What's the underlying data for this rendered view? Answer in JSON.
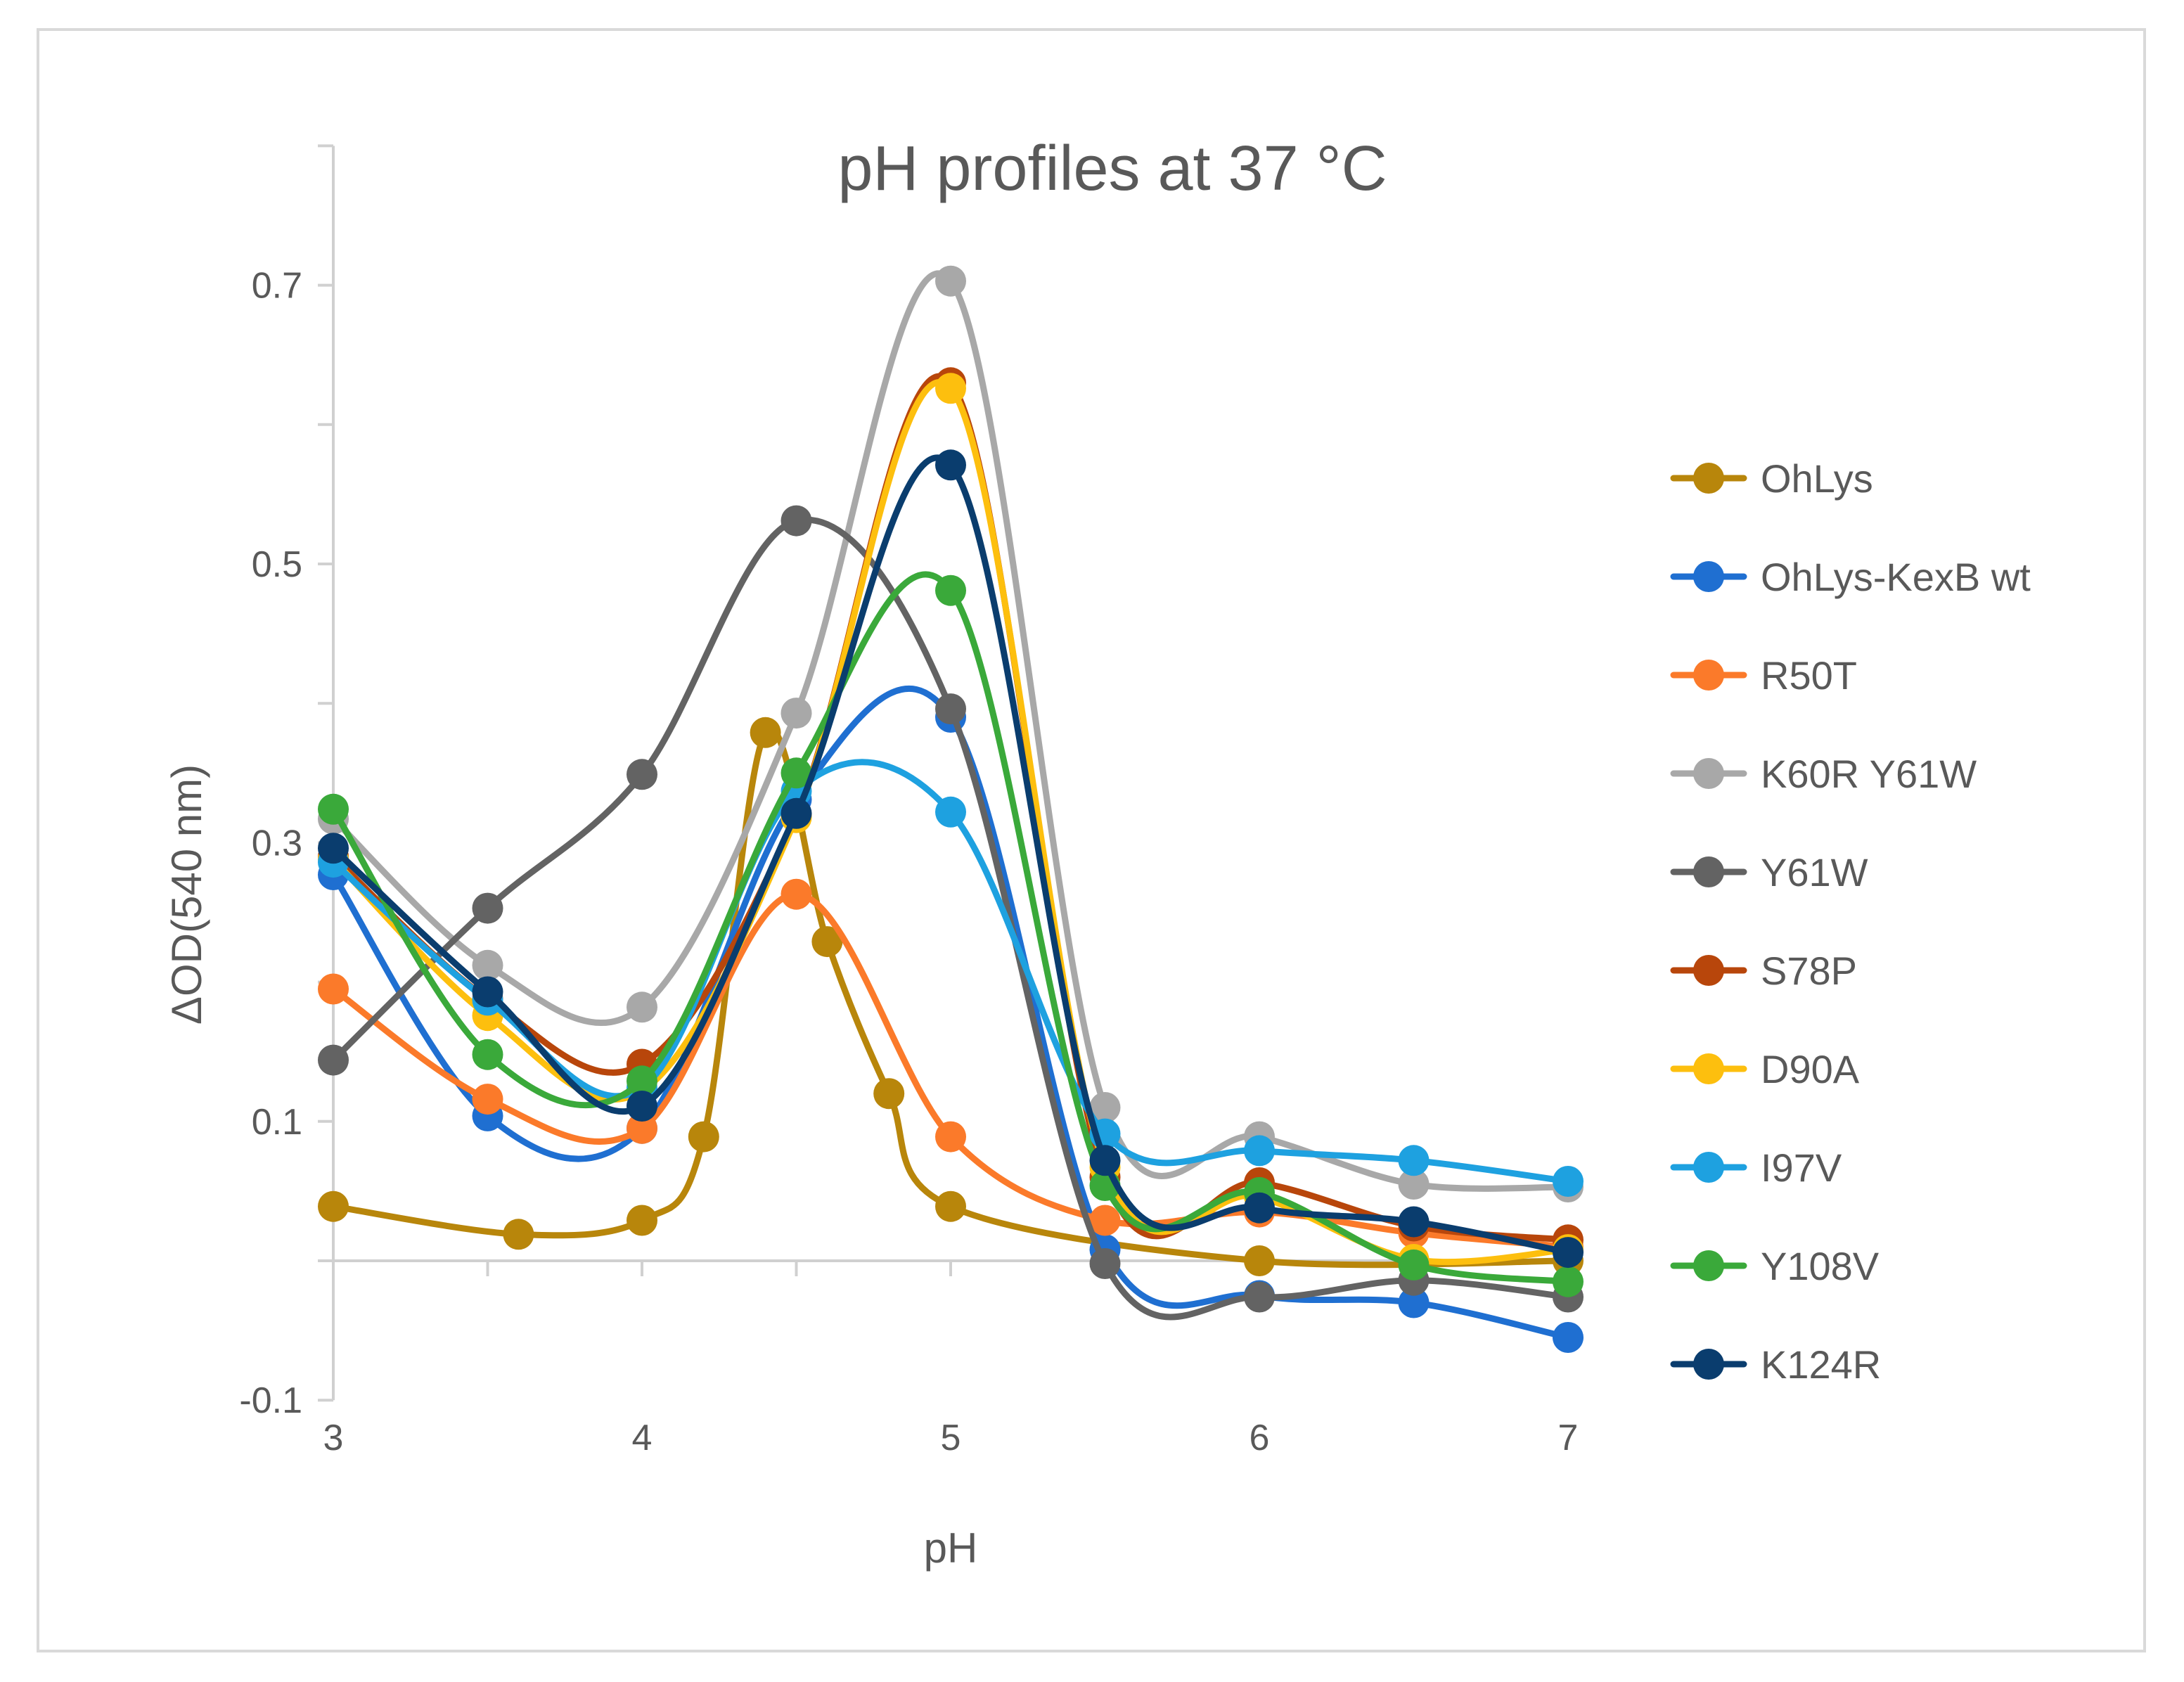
{
  "chart_data": {
    "type": "line",
    "title": "pH profiles at 37 °C",
    "xlabel": "pH",
    "ylabel": "ΔOD(540 nm)",
    "xlim": [
      3,
      7
    ],
    "ylim": [
      -0.1,
      0.8
    ],
    "x_ticks": [
      "3",
      "4",
      "5",
      "6",
      "7"
    ],
    "y_ticks": [
      "-0.1",
      "0.1",
      "0.3",
      "0.5",
      "0.7"
    ],
    "y_tick_values": [
      -0.1,
      0.1,
      0.3,
      0.5,
      0.7
    ],
    "legend_position": "right",
    "grid": false,
    "series": [
      {
        "name": "OhLys",
        "color": "#b8860b",
        "x": [
          3,
          3.6,
          4,
          4.2,
          4.4,
          4.6,
          4.8,
          5,
          6,
          7
        ],
        "y": [
          0.039,
          0.019,
          0.029,
          0.089,
          0.379,
          0.229,
          0.12,
          0.039,
          0.0,
          0.0
        ]
      },
      {
        "name": "OhLys-KexB wt",
        "color": "#1f6fd1",
        "x": [
          3,
          3.5,
          4,
          4.5,
          5,
          5.5,
          6,
          6.5,
          7
        ],
        "y": [
          0.277,
          0.104,
          0.095,
          0.331,
          0.39,
          0.008,
          -0.025,
          -0.03,
          -0.055
        ]
      },
      {
        "name": "R50T",
        "color": "#fb7a2a",
        "x": [
          3,
          3.5,
          4,
          4.5,
          5,
          5.5,
          6,
          6.5,
          7
        ],
        "y": [
          0.195,
          0.116,
          0.095,
          0.263,
          0.089,
          0.029,
          0.035,
          0.02,
          0.01
        ]
      },
      {
        "name": "K60R Y61W",
        "color": "#a8a8a8",
        "x": [
          3,
          3.5,
          4,
          4.5,
          5,
          5.5,
          6,
          6.5,
          7
        ],
        "y": [
          0.317,
          0.212,
          0.182,
          0.393,
          0.703,
          0.11,
          0.089,
          0.055,
          0.053
        ]
      },
      {
        "name": "Y61W",
        "color": "#636363",
        "x": [
          3,
          3.5,
          4,
          4.5,
          5,
          5.5,
          6,
          6.5,
          7
        ],
        "y": [
          0.144,
          0.253,
          0.349,
          0.531,
          0.396,
          -0.002,
          -0.026,
          -0.014,
          -0.026
        ]
      },
      {
        "name": "S78P",
        "color": "#b8460b",
        "x": [
          3,
          3.5,
          4,
          4.5,
          5,
          5.5,
          6,
          6.5,
          7
        ],
        "y": [
          0.29,
          0.188,
          0.141,
          0.32,
          0.63,
          0.06,
          0.056,
          0.025,
          0.015
        ]
      },
      {
        "name": "D90A",
        "color": "#fdbf0e",
        "x": [
          3,
          3.5,
          4,
          4.5,
          5,
          5.5,
          6,
          6.5,
          7
        ],
        "y": [
          0.288,
          0.176,
          0.122,
          0.318,
          0.626,
          0.067,
          0.046,
          0.001,
          0.008
        ]
      },
      {
        "name": "I97V",
        "color": "#1ea1e0",
        "x": [
          3,
          3.5,
          4,
          4.5,
          5,
          5.5,
          6,
          6.5,
          7
        ],
        "y": [
          0.286,
          0.187,
          0.124,
          0.337,
          0.322,
          0.091,
          0.079,
          0.072,
          0.057
        ]
      },
      {
        "name": "Y108V",
        "color": "#3aa93a",
        "x": [
          3,
          3.5,
          4,
          4.5,
          5,
          5.5,
          6,
          6.5,
          7
        ],
        "y": [
          0.324,
          0.148,
          0.129,
          0.35,
          0.481,
          0.054,
          0.049,
          -0.003,
          -0.015
        ]
      },
      {
        "name": "K124R",
        "color": "#0a3d6e",
        "x": [
          3,
          3.5,
          4,
          4.5,
          5,
          5.5,
          6,
          6.5,
          7
        ],
        "y": [
          0.296,
          0.193,
          0.111,
          0.321,
          0.571,
          0.072,
          0.038,
          0.028,
          0.006
        ]
      }
    ]
  }
}
